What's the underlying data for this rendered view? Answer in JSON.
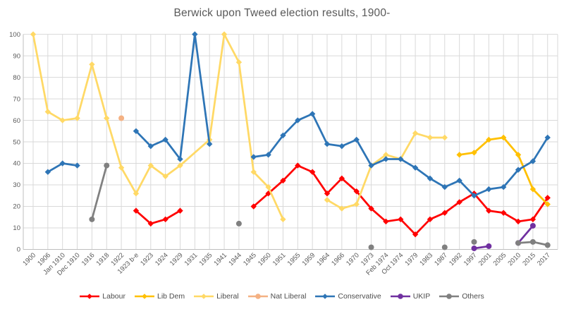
{
  "chart_data": {
    "type": "line",
    "title": "Berwick upon Tweed election results, 1900-",
    "xlabel": "",
    "ylabel": "",
    "y_axis": {
      "min": 0,
      "max": 100,
      "step": 10,
      "tick_labels": [
        "0",
        "10",
        "20",
        "30",
        "40",
        "50",
        "60",
        "70",
        "80",
        "90",
        "100"
      ]
    },
    "grid": true,
    "legend_position": "bottom",
    "categories": [
      "1900",
      "1906",
      "Jan 1910",
      "Dec 1910",
      "1916",
      "1918",
      "1922",
      "1923 b-e",
      "1923",
      "1924",
      "1929",
      "1931",
      "1935",
      "1941",
      "1944",
      "1945",
      "1950",
      "1951",
      "1955",
      "1959",
      "1964",
      "1966",
      "1970",
      "1973",
      "Feb 1974",
      "Oct 1974",
      "1979",
      "1983",
      "1987",
      "1992",
      "1997",
      "2001",
      "2005",
      "2010",
      "2015",
      "2017"
    ],
    "series": [
      {
        "name": "Labour",
        "color": "#FF0000",
        "marker": "diamond",
        "segments": [
          [
            [
              "1923 b-e",
              18
            ],
            [
              "1923",
              12
            ],
            [
              "1924",
              14
            ],
            [
              "1929",
              18
            ]
          ],
          [
            [
              "1945",
              20
            ],
            [
              "1950",
              26
            ],
            [
              "1951",
              32
            ],
            [
              "1955",
              39
            ],
            [
              "1959",
              36
            ],
            [
              "1964",
              26
            ],
            [
              "1966",
              33
            ],
            [
              "1970",
              27
            ],
            [
              "1973",
              19
            ],
            [
              "Feb 1974",
              13
            ],
            [
              "Oct 1974",
              14
            ],
            [
              "1979",
              7
            ],
            [
              "1983",
              14
            ],
            [
              "1987",
              17
            ],
            [
              "1992",
              22
            ],
            [
              "1997",
              26
            ],
            [
              "2001",
              18
            ],
            [
              "2005",
              17
            ],
            [
              "2010",
              13
            ],
            [
              "2015",
              14
            ],
            [
              "2017",
              24
            ]
          ]
        ]
      },
      {
        "name": "Lib Dem",
        "color": "#FFC000",
        "marker": "diamond",
        "segments": [
          [
            [
              "1992",
              44
            ],
            [
              "1997",
              45
            ],
            [
              "2001",
              51
            ],
            [
              "2005",
              52
            ],
            [
              "2010",
              44
            ],
            [
              "2015",
              28
            ],
            [
              "2017",
              21
            ]
          ]
        ]
      },
      {
        "name": "Liberal",
        "color": "#FFD966",
        "marker": "diamond",
        "segments": [
          [
            [
              "1900",
              100
            ],
            [
              "1906",
              64
            ],
            [
              "Jan 1910",
              60
            ],
            [
              "Dec 1910",
              61
            ],
            [
              "1916",
              86
            ],
            [
              "1918",
              61
            ],
            [
              "1922",
              38
            ],
            [
              "1923 b-e",
              26
            ],
            [
              "1923",
              39
            ],
            [
              "1924",
              34
            ],
            [
              "1929",
              39
            ],
            [
              "1935",
              51
            ],
            [
              "1941",
              100
            ],
            [
              "1944",
              87
            ],
            [
              "1945",
              36
            ],
            [
              "1950",
              29
            ],
            [
              "1951",
              14
            ]
          ],
          [
            [
              "1964",
              23
            ],
            [
              "1966",
              19
            ],
            [
              "1970",
              21
            ],
            [
              "1973",
              39
            ],
            [
              "Feb 1974",
              44
            ],
            [
              "Oct 1974",
              42
            ],
            [
              "1979",
              54
            ],
            [
              "1983",
              52
            ],
            [
              "1987",
              52
            ]
          ]
        ]
      },
      {
        "name": "Nat Liberal",
        "color": "#F4B183",
        "marker": "circle",
        "segments": [
          [
            [
              "1922",
              61
            ]
          ]
        ]
      },
      {
        "name": "Conservative",
        "color": "#2E75B6",
        "marker": "diamond",
        "segments": [
          [
            [
              "1906",
              36
            ],
            [
              "Jan 1910",
              40
            ],
            [
              "Dec 1910",
              39
            ]
          ],
          [
            [
              "1923 b-e",
              55
            ],
            [
              "1923",
              48
            ],
            [
              "1924",
              51
            ],
            [
              "1929",
              42
            ],
            [
              "1931",
              100
            ],
            [
              "1935",
              49
            ]
          ],
          [
            [
              "1945",
              43
            ],
            [
              "1950",
              44
            ],
            [
              "1951",
              53
            ],
            [
              "1955",
              60
            ],
            [
              "1959",
              63
            ],
            [
              "1964",
              49
            ],
            [
              "1966",
              48
            ],
            [
              "1970",
              51
            ],
            [
              "1973",
              39
            ],
            [
              "Feb 1974",
              42
            ],
            [
              "Oct 1974",
              42
            ],
            [
              "1979",
              38
            ],
            [
              "1983",
              33
            ],
            [
              "1987",
              29
            ],
            [
              "1992",
              32
            ],
            [
              "1997",
              25
            ],
            [
              "2001",
              28
            ],
            [
              "2005",
              29
            ],
            [
              "2010",
              37
            ],
            [
              "2015",
              41
            ],
            [
              "2017",
              52
            ]
          ]
        ]
      },
      {
        "name": "UKIP",
        "color": "#7030A0",
        "marker": "circle",
        "segments": [
          [
            [
              "1997",
              0.5
            ],
            [
              "2001",
              1.5
            ]
          ],
          [
            [
              "2010",
              3
            ],
            [
              "2015",
              11
            ]
          ]
        ]
      },
      {
        "name": "Others",
        "color": "#808080",
        "marker": "circle",
        "segments": [
          [
            [
              "1916",
              14
            ],
            [
              "1918",
              39
            ]
          ],
          [
            [
              "1944",
              12
            ]
          ],
          [
            [
              "1973",
              1
            ]
          ],
          [
            [
              "1987",
              1
            ]
          ],
          [
            [
              "1997",
              3.5
            ]
          ],
          [
            [
              "2010",
              3
            ],
            [
              "2015",
              3.5
            ],
            [
              "2017",
              2
            ]
          ]
        ]
      }
    ],
    "style": {
      "grid_color": "#D9D9D9",
      "axis_color": "#BFBFBF",
      "tick_label_color": "#595959",
      "title_color": "#595959",
      "legend_text_color": "#4d4d4d",
      "background": "#FFFFFF"
    }
  }
}
